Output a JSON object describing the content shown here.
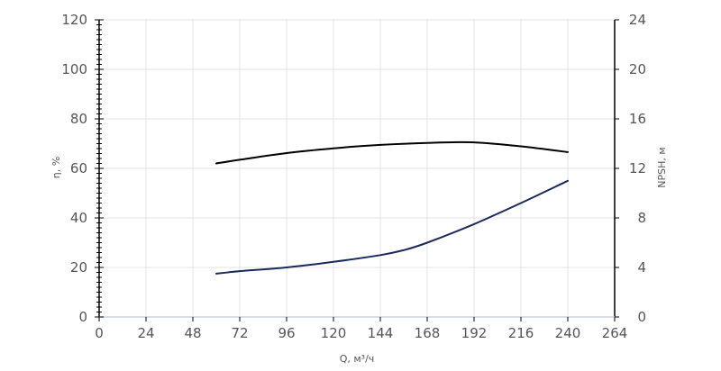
{
  "chart_data": {
    "type": "line",
    "title": "",
    "xlabel": "Q, м³/ч",
    "ylabel_left": "η, %",
    "ylabel_right": "NPSH, м",
    "xlim": [
      0,
      264
    ],
    "ylim_left": [
      0,
      120
    ],
    "ylim_right": [
      0,
      24
    ],
    "x_ticks": [
      "0",
      "24",
      "48",
      "72",
      "96",
      "120",
      "144",
      "168",
      "192",
      "216",
      "240",
      "264"
    ],
    "y_left_ticks": [
      "0",
      "20",
      "40",
      "60",
      "80",
      "100",
      "120"
    ],
    "y_right_ticks": [
      "0",
      "4",
      "8",
      "12",
      "16",
      "20",
      "24"
    ],
    "grid": true,
    "legend": "none",
    "series": [
      {
        "axis": "left",
        "color": "#000000",
        "x": [
          60,
          72,
          96,
          120,
          144,
          168,
          192,
          216,
          240
        ],
        "y": [
          62,
          63.5,
          66.2,
          68.1,
          69.5,
          70.3,
          70.5,
          68.9,
          66.6
        ]
      },
      {
        "axis": "right",
        "color": "#1b2a5c",
        "x": [
          60,
          72,
          96,
          120,
          144,
          156,
          168,
          192,
          216,
          240
        ],
        "y": [
          3.5,
          3.7,
          4.0,
          4.45,
          5.0,
          5.4,
          6.0,
          7.5,
          9.2,
          11.0
        ]
      }
    ]
  }
}
